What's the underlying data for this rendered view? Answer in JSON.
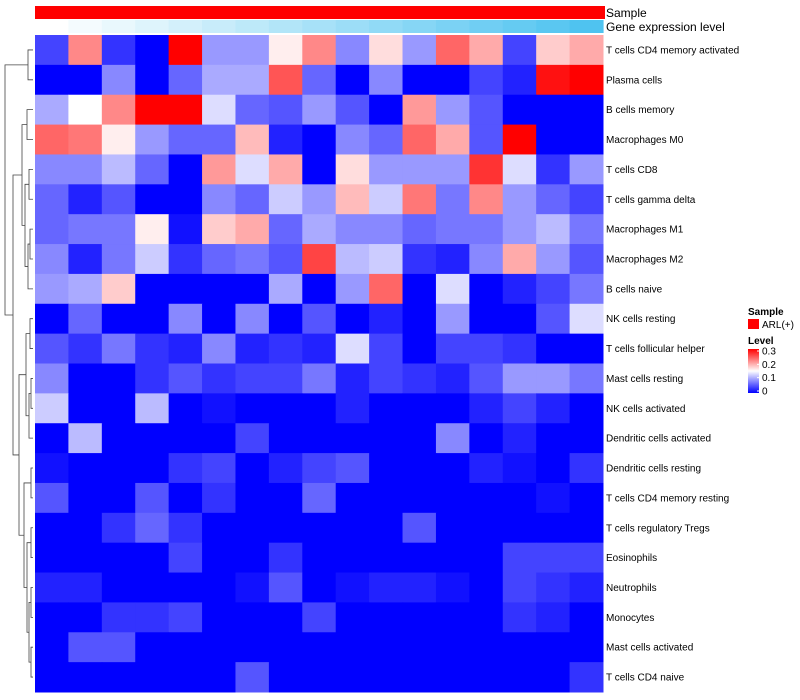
{
  "chart_data": {
    "type": "heatmap",
    "annotations": {
      "sample_label": "Sample",
      "gene_label": "Gene expression level",
      "sample_color": "#ff0000",
      "gene_gradient": [
        "#ffffff",
        "#4fc3f0"
      ]
    },
    "rows": [
      "T cells CD4 memory activated",
      "Plasma cells",
      "B cells memory",
      "Macrophages M0",
      "T cells CD8",
      "T cells gamma delta",
      "Macrophages M1",
      "Macrophages M2",
      "B cells naive",
      "NK cells resting",
      "T cells follicular helper",
      "Mast cells resting",
      "NK cells activated",
      "Dendritic cells activated",
      "Dendritic cells resting",
      "T cells CD4 memory resting",
      "T cells regulatory  Tregs",
      "Eosinophils",
      "Neutrophils",
      "Monocytes",
      "Mast cells activated",
      "T cells CD4 naive"
    ],
    "values": [
      [
        0.04,
        0.22,
        0.03,
        0.0,
        0.3,
        0.09,
        0.09,
        0.16,
        0.22,
        0.08,
        0.17,
        0.09,
        0.24,
        0.2,
        0.04,
        0.18,
        0.2
      ],
      [
        0.0,
        0.0,
        0.08,
        0.0,
        0.06,
        0.1,
        0.1,
        0.25,
        0.06,
        0.0,
        0.08,
        0.0,
        0.0,
        0.04,
        0.02,
        0.29,
        0.3
      ],
      [
        0.1,
        0.15,
        0.22,
        0.3,
        0.3,
        0.13,
        0.06,
        0.05,
        0.09,
        0.05,
        0.0,
        0.21,
        0.09,
        0.05,
        0.0,
        0.0,
        0.0
      ],
      [
        0.24,
        0.23,
        0.16,
        0.09,
        0.06,
        0.06,
        0.19,
        0.02,
        0.0,
        0.08,
        0.06,
        0.24,
        0.2,
        0.05,
        0.3,
        0.0,
        0.0
      ],
      [
        0.08,
        0.08,
        0.11,
        0.06,
        0.0,
        0.21,
        0.13,
        0.2,
        0.0,
        0.17,
        0.09,
        0.09,
        0.09,
        0.27,
        0.13,
        0.03,
        0.09
      ],
      [
        0.06,
        0.02,
        0.05,
        0.0,
        0.0,
        0.08,
        0.06,
        0.12,
        0.09,
        0.19,
        0.12,
        0.23,
        0.07,
        0.22,
        0.09,
        0.06,
        0.04
      ],
      [
        0.06,
        0.07,
        0.07,
        0.16,
        0.01,
        0.18,
        0.2,
        0.06,
        0.1,
        0.08,
        0.08,
        0.06,
        0.07,
        0.07,
        0.09,
        0.11,
        0.07
      ],
      [
        0.08,
        0.02,
        0.07,
        0.12,
        0.03,
        0.06,
        0.07,
        0.05,
        0.26,
        0.11,
        0.12,
        0.03,
        0.02,
        0.08,
        0.2,
        0.09,
        0.05
      ],
      [
        0.09,
        0.1,
        0.18,
        0.0,
        0.0,
        0.0,
        0.0,
        0.1,
        0.0,
        0.09,
        0.24,
        0.0,
        0.13,
        0.0,
        0.02,
        0.04,
        0.07
      ],
      [
        0.0,
        0.06,
        0.0,
        0.0,
        0.08,
        0.0,
        0.08,
        0.0,
        0.05,
        0.0,
        0.02,
        0.0,
        0.09,
        0.0,
        0.0,
        0.05,
        0.13
      ],
      [
        0.05,
        0.03,
        0.07,
        0.03,
        0.02,
        0.08,
        0.02,
        0.03,
        0.02,
        0.13,
        0.04,
        0.0,
        0.04,
        0.04,
        0.03,
        0.0,
        0.0
      ],
      [
        0.08,
        0.0,
        0.0,
        0.03,
        0.05,
        0.03,
        0.04,
        0.04,
        0.07,
        0.02,
        0.04,
        0.03,
        0.02,
        0.05,
        0.09,
        0.09,
        0.07
      ],
      [
        0.12,
        0.0,
        0.0,
        0.11,
        0.0,
        0.01,
        0.0,
        0.0,
        0.0,
        0.02,
        0.0,
        0.0,
        0.0,
        0.02,
        0.04,
        0.02,
        0.0
      ],
      [
        0.0,
        0.11,
        0.0,
        0.0,
        0.0,
        0.0,
        0.04,
        0.0,
        0.0,
        0.0,
        0.0,
        0.0,
        0.08,
        0.0,
        0.02,
        0.0,
        0.0
      ],
      [
        0.01,
        0.0,
        0.0,
        0.0,
        0.03,
        0.04,
        0.0,
        0.02,
        0.04,
        0.05,
        0.0,
        0.0,
        0.0,
        0.02,
        0.01,
        0.0,
        0.03
      ],
      [
        0.05,
        0.0,
        0.0,
        0.05,
        0.0,
        0.03,
        0.0,
        0.0,
        0.06,
        0.0,
        0.0,
        0.0,
        0.0,
        0.0,
        0.0,
        0.01,
        0.0
      ],
      [
        0.0,
        0.0,
        0.03,
        0.06,
        0.03,
        0.0,
        0.0,
        0.0,
        0.0,
        0.0,
        0.0,
        0.05,
        0.0,
        0.0,
        0.0,
        0.0,
        0.0
      ],
      [
        0.0,
        0.0,
        0.0,
        0.0,
        0.04,
        0.0,
        0.0,
        0.03,
        0.0,
        0.0,
        0.0,
        0.0,
        0.0,
        0.0,
        0.04,
        0.04,
        0.04
      ],
      [
        0.02,
        0.02,
        0.0,
        0.0,
        0.0,
        0.0,
        0.01,
        0.05,
        0.0,
        0.01,
        0.02,
        0.02,
        0.01,
        0.0,
        0.04,
        0.03,
        0.02
      ],
      [
        0.0,
        0.0,
        0.03,
        0.03,
        0.04,
        0.0,
        0.0,
        0.0,
        0.04,
        0.0,
        0.0,
        0.0,
        0.0,
        0.0,
        0.03,
        0.02,
        0.0
      ],
      [
        0.0,
        0.05,
        0.05,
        0.0,
        0.0,
        0.0,
        0.0,
        0.0,
        0.0,
        0.0,
        0.0,
        0.0,
        0.0,
        0.0,
        0.0,
        0.0,
        0.0
      ],
      [
        0.0,
        0.0,
        0.0,
        0.0,
        0.0,
        0.0,
        0.05,
        0.0,
        0.0,
        0.0,
        0.0,
        0.0,
        0.0,
        0.0,
        0.0,
        0.0,
        0.03
      ]
    ],
    "color_scale": {
      "min": 0,
      "mid": 0.15,
      "max": 0.3,
      "low": "#0000ff",
      "midColor": "#ffffff",
      "high": "#ff0000"
    },
    "legend": {
      "sample_title": "Sample",
      "sample_item": "ARL(+)",
      "level_title": "Level",
      "ticks": [
        "0.3",
        "0.2",
        "0.1",
        "0"
      ]
    }
  }
}
